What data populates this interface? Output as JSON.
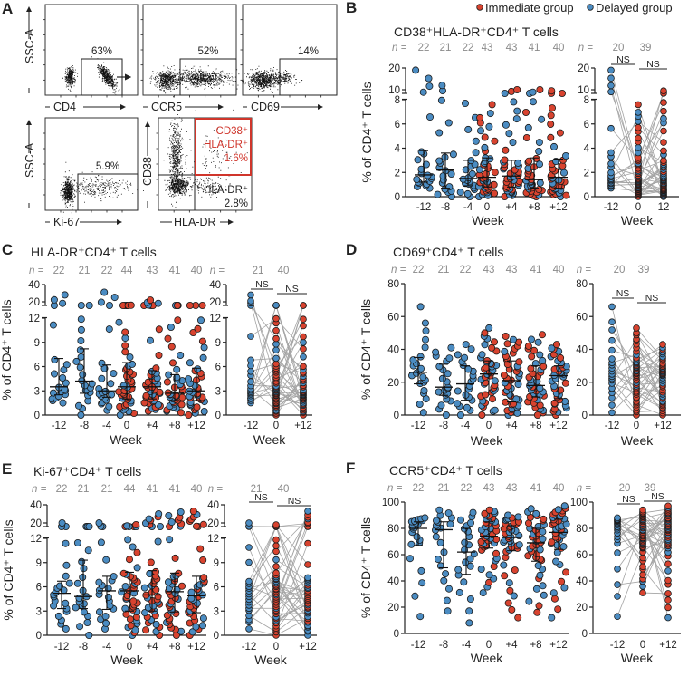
{
  "legend": {
    "immediate": "Immediate group",
    "delayed": "Delayed group",
    "immediate_color": "#d8432f",
    "delayed_color": "#4b8cc2"
  },
  "panel_a": {
    "letter": "A",
    "y_label": "SSC-A",
    "plots": [
      {
        "x_label": "CD4",
        "gate_pct": "63%"
      },
      {
        "x_label": "CCR5",
        "gate_pct": "52%"
      },
      {
        "x_label": "CD69",
        "gate_pct": "14%"
      },
      {
        "x_label": "Ki-67",
        "gate_pct": "5.9%"
      }
    ],
    "quad_plot": {
      "x_label": "HLA-DR",
      "y_label": "CD38",
      "dp_line1": "CD38⁺",
      "dp_line2": "HLA-DR⁺",
      "dp_pct": "1.6%",
      "sp_line1": "HLA-DR⁺",
      "sp_pct": "2.8%"
    }
  },
  "chart_data": [
    {
      "panel": "B",
      "type": "scatter",
      "title": "CD38⁺HLA-DR⁺CD4⁺ T cells",
      "ylabel": "% of CD4⁺ T cells",
      "xlabel": "Week",
      "n_label": "n =",
      "y_ticks_lower": [
        0,
        2,
        4,
        6,
        8
      ],
      "y_ticks_upper": [
        10,
        20
      ],
      "categories": [
        "-12",
        "-8",
        "-4",
        "0",
        "+4",
        "+8",
        "+12"
      ],
      "n": [
        22,
        21,
        22,
        43,
        43,
        41,
        40
      ],
      "stats": [
        {
          "median": 1.8,
          "q1": 1.2,
          "q3": 3.8,
          "min": 0.7,
          "max": 19
        },
        {
          "median": 2.2,
          "q1": 0.7,
          "q3": 3.6,
          "min": 0,
          "max": 12
        },
        {
          "median": 1.5,
          "q1": 0.9,
          "q3": 3.0,
          "min": 0,
          "max": 7.7
        },
        {
          "median": 1.6,
          "q1": 0.8,
          "q3": 3.2,
          "min": 0,
          "max": 7.6
        },
        {
          "median": 1.7,
          "q1": 0.8,
          "q3": 3.0,
          "min": 0,
          "max": 10
        },
        {
          "median": 1.4,
          "q1": 0.7,
          "q3": 3.2,
          "min": 0,
          "max": 10
        },
        {
          "median": 1.6,
          "q1": 0.7,
          "q3": 3.1,
          "min": 0,
          "max": 9.5
        }
      ],
      "paired": {
        "categories": [
          "-12",
          "0",
          "12"
        ],
        "n": [
          20,
          39
        ],
        "comparisons": [
          "NS",
          "NS"
        ]
      }
    },
    {
      "panel": "C",
      "type": "scatter",
      "title": "HLA-DR⁺CD4⁺ T cells",
      "ylabel": "% of CD4⁺ T cells",
      "xlabel": "Week",
      "n_label": "n =",
      "y_ticks_lower": [
        0,
        3,
        6,
        9,
        12
      ],
      "y_ticks_upper": [
        20,
        40
      ],
      "categories": [
        "-12",
        "-8",
        "-4",
        "0",
        "+4",
        "+8",
        "+12"
      ],
      "n": [
        22,
        21,
        22,
        44,
        43,
        41,
        40
      ],
      "stats": [
        {
          "median": 3.5,
          "q1": 2.5,
          "q3": 7.0,
          "min": 1.5,
          "max": 28
        },
        {
          "median": 4.2,
          "q1": 2.7,
          "q3": 8.2,
          "min": 0,
          "max": 15
        },
        {
          "median": 3.0,
          "q1": 2.2,
          "q3": 6.2,
          "min": 0.6,
          "max": 31
        },
        {
          "median": 3.5,
          "q1": 2.0,
          "q3": 6.5,
          "min": 0,
          "max": 16
        },
        {
          "median": 3.5,
          "q1": 2.0,
          "q3": 5.5,
          "min": 0.5,
          "max": 22
        },
        {
          "median": 2.7,
          "q1": 1.8,
          "q3": 5.0,
          "min": 0.3,
          "max": 15
        },
        {
          "median": 3.0,
          "q1": 1.8,
          "q3": 5.8,
          "min": 0,
          "max": 15
        }
      ],
      "paired": {
        "categories": [
          "-12",
          "0",
          "+12"
        ],
        "n": [
          21,
          40
        ],
        "comparisons": [
          "NS",
          "NS"
        ]
      }
    },
    {
      "panel": "D",
      "type": "scatter",
      "title": "CD69⁺CD4⁺ T cells",
      "ylabel": "% of CD4⁺ T cells",
      "xlabel": "Week",
      "n_label": "n =",
      "y_ticks_lower": [
        0,
        20,
        40,
        60,
        80
      ],
      "y_ticks_upper": [],
      "categories": [
        "-12",
        "-8",
        "-4",
        "0",
        "+4",
        "+8",
        "+12"
      ],
      "n": [
        22,
        21,
        22,
        43,
        43,
        41,
        40
      ],
      "stats": [
        {
          "median": 26,
          "q1": 19,
          "q3": 35,
          "min": 1.5,
          "max": 66
        },
        {
          "median": 17,
          "q1": 12,
          "q3": 31,
          "min": 0,
          "max": 41
        },
        {
          "median": 19,
          "q1": 9,
          "q3": 30,
          "min": 0,
          "max": 43
        },
        {
          "median": 25,
          "q1": 14,
          "q3": 33,
          "min": 0,
          "max": 53
        },
        {
          "median": 21,
          "q1": 8,
          "q3": 33,
          "min": 0,
          "max": 48
        },
        {
          "median": 18,
          "q1": 11,
          "q3": 30,
          "min": 0,
          "max": 49
        },
        {
          "median": 24,
          "q1": 10,
          "q3": 30,
          "min": 0,
          "max": 43
        }
      ],
      "paired": {
        "categories": [
          "-12",
          "0",
          "+12"
        ],
        "n": [
          20,
          39
        ],
        "comparisons": [
          "NS",
          "NS"
        ]
      }
    },
    {
      "panel": "E",
      "type": "scatter",
      "title": "Ki-67⁺CD4⁺ T cells",
      "ylabel": "% of CD4⁺ T cells",
      "xlabel": "Week",
      "n_label": "n =",
      "y_ticks_lower": [
        0,
        3,
        6,
        9,
        12
      ],
      "y_ticks_upper": [
        20,
        40
      ],
      "categories": [
        "-12",
        "-8",
        "-4",
        "0",
        "+4",
        "+8",
        "+12"
      ],
      "n": [
        22,
        21,
        21,
        44,
        41,
        41,
        40
      ],
      "stats": [
        {
          "median": 5.2,
          "q1": 3.3,
          "q3": 6.7,
          "min": 0.8,
          "max": 20
        },
        {
          "median": 4.8,
          "q1": 3.3,
          "q3": 9.3,
          "min": 0,
          "max": 16
        },
        {
          "median": 5.5,
          "q1": 3.2,
          "q3": 7.3,
          "min": 0.8,
          "max": 20
        },
        {
          "median": 5.5,
          "q1": 3.0,
          "q3": 7.8,
          "min": 0,
          "max": 18
        },
        {
          "median": 5.0,
          "q1": 3.0,
          "q3": 8.0,
          "min": 0,
          "max": 30
        },
        {
          "median": 5.4,
          "q1": 2.9,
          "q3": 7.7,
          "min": 0,
          "max": 32
        },
        {
          "median": 4.9,
          "q1": 2.8,
          "q3": 7.3,
          "min": 0,
          "max": 33
        }
      ],
      "paired": {
        "categories": [
          "-12",
          "0",
          "+12"
        ],
        "n": [
          21,
          40
        ],
        "comparisons": [
          "NS",
          "NS"
        ]
      }
    },
    {
      "panel": "F",
      "type": "scatter",
      "title": "CCR5⁺CD4⁺ T cells",
      "ylabel": "% of CD4⁺ T cells",
      "xlabel": "Week",
      "n_label": "n =",
      "y_ticks_lower": [
        0,
        20,
        40,
        60,
        80,
        100
      ],
      "y_ticks_upper": [],
      "categories": [
        "-12",
        "-8",
        "-4",
        "0",
        "+4",
        "+8",
        "+12"
      ],
      "n": [
        22,
        21,
        22,
        43,
        43,
        41,
        40
      ],
      "stats": [
        {
          "median": 80,
          "q1": 67,
          "q3": 85,
          "min": 13,
          "max": 88
        },
        {
          "median": 79,
          "q1": 50,
          "q3": 85,
          "min": 17,
          "max": 94
        },
        {
          "median": 62,
          "q1": 45,
          "q3": 80,
          "min": 8,
          "max": 92
        },
        {
          "median": 74,
          "q1": 65,
          "q3": 85,
          "min": 31,
          "max": 94
        },
        {
          "median": 73,
          "q1": 63,
          "q3": 82,
          "min": 12,
          "max": 90
        },
        {
          "median": 69,
          "q1": 55,
          "q3": 80,
          "min": 16,
          "max": 95
        },
        {
          "median": 77,
          "q1": 64,
          "q3": 87,
          "min": 12,
          "max": 97
        }
      ],
      "paired": {
        "categories": [
          "-12",
          "0",
          "+12"
        ],
        "n": [
          20,
          39
        ],
        "comparisons": [
          "NS",
          "NS"
        ]
      }
    }
  ]
}
